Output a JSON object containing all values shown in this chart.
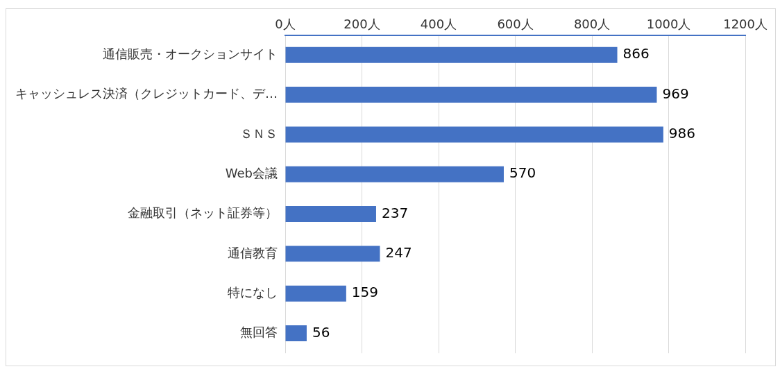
{
  "chart_data": {
    "type": "bar",
    "orientation": "horizontal",
    "categories": [
      "通信販売・オークションサイト",
      "キャッシュレス決済（クレジットカード、デ…",
      "ＳＮＳ",
      "Web会議",
      "金融取引（ネット証券等）",
      "通信教育",
      "特になし",
      "無回答"
    ],
    "values": [
      866,
      969,
      986,
      570,
      237,
      247,
      159,
      56
    ],
    "color": "#4472c4",
    "xlim": [
      0,
      1200
    ],
    "xticks": [
      {
        "value": 0,
        "label": "0人"
      },
      {
        "value": 200,
        "label": "200人"
      },
      {
        "value": 400,
        "label": "400人"
      },
      {
        "value": 600,
        "label": "600人"
      },
      {
        "value": 800,
        "label": "800人"
      },
      {
        "value": 1000,
        "label": "1000人"
      },
      {
        "value": 1200,
        "label": "1200人"
      }
    ],
    "grid": "x",
    "data_labels": true,
    "legend": false
  }
}
